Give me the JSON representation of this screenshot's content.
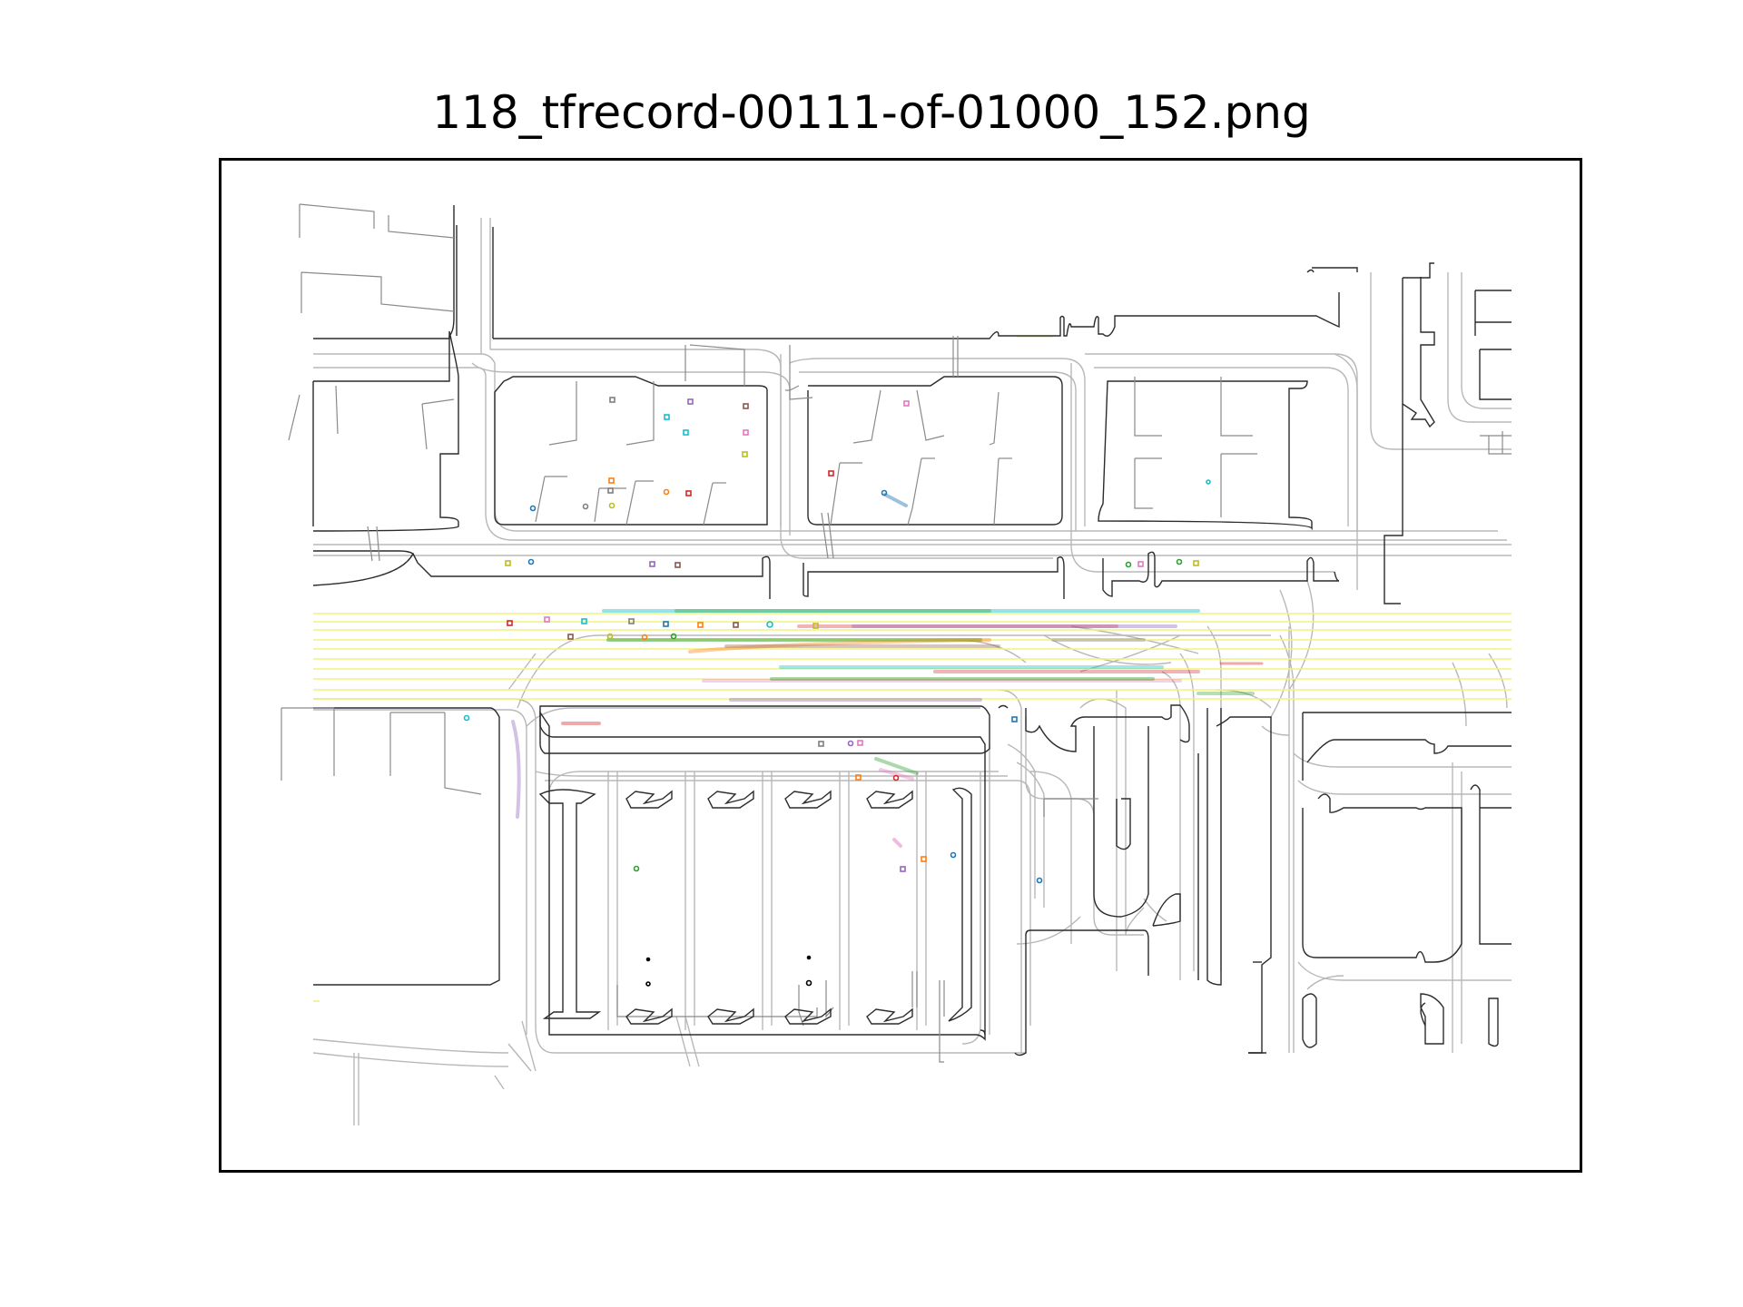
{
  "figure": {
    "title": "118_tfrecord-00111-of-01000_152.png"
  },
  "map": {
    "road_edge_color": "#2b2b2b",
    "lane_color": "#b8b8b8",
    "road_line_color": "#f2f27a",
    "agent_colors": [
      "#1f77b4",
      "#ff7f0e",
      "#2ca02c",
      "#d62728",
      "#9467bd",
      "#8c564b",
      "#e377c2",
      "#7f7f7f",
      "#bcbd22",
      "#17becf"
    ]
  }
}
